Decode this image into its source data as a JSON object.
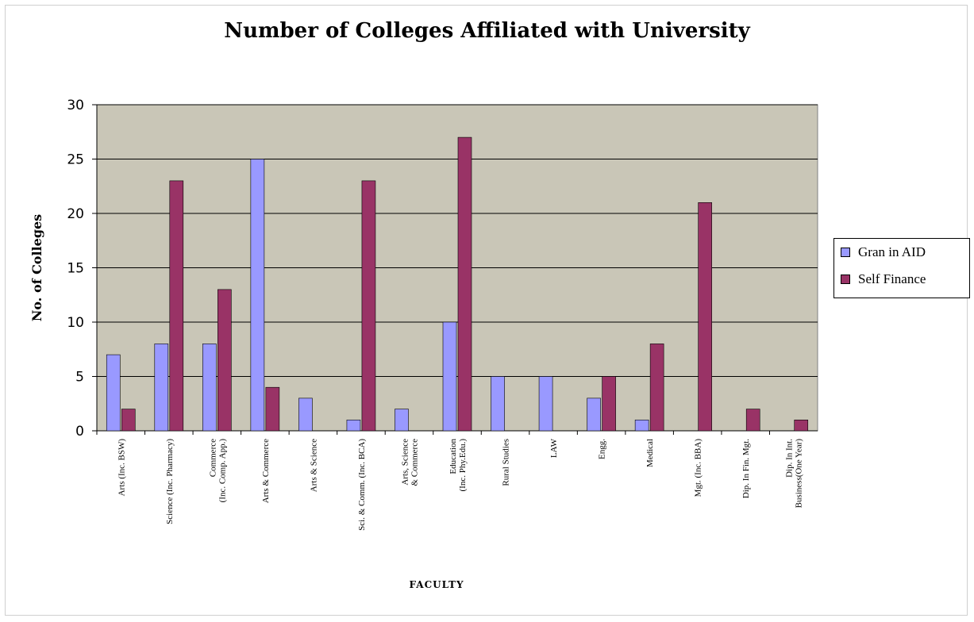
{
  "chart_data": {
    "type": "bar",
    "title": "Number of Colleges Affiliated with University",
    "xlabel": "FACULTY",
    "ylabel": "No. of Colleges",
    "ylim": [
      0,
      30
    ],
    "yticks": [
      0,
      5,
      10,
      15,
      20,
      25,
      30
    ],
    "grid": true,
    "legend_position": "right",
    "plot_background": "#c9c6b7",
    "categories": [
      [
        "Arts (Inc. BSW)"
      ],
      [
        "Science (Inc. Pharmacy)"
      ],
      [
        "Commerce",
        "(Inc. Comp. App.)"
      ],
      [
        "Arts & Commerce"
      ],
      [
        "Arts & Science"
      ],
      [
        "Sci. & Comm. (Inc. BCA)"
      ],
      [
        "Arts, Science",
        "& Commerce"
      ],
      [
        "Education",
        "(Inc. Phy.Edu.)"
      ],
      [
        "Rural Studies"
      ],
      [
        "LAW"
      ],
      [
        "Engg."
      ],
      [
        "Medical"
      ],
      [
        "Mgt. (Inc. BBA)"
      ],
      [
        "Dip. In Fin. Mgt."
      ],
      [
        "Dip. In Int.",
        "Business(One Year)"
      ]
    ],
    "series": [
      {
        "name": "Gran in AID",
        "color": "#9999ff",
        "values": [
          7,
          8,
          8,
          25,
          3,
          1,
          2,
          10,
          5,
          5,
          3,
          1,
          0,
          0,
          0
        ]
      },
      {
        "name": "Self Finance",
        "color": "#993366",
        "values": [
          2,
          23,
          13,
          4,
          0,
          23,
          0,
          27,
          0,
          0,
          5,
          8,
          21,
          2,
          1
        ]
      }
    ]
  }
}
